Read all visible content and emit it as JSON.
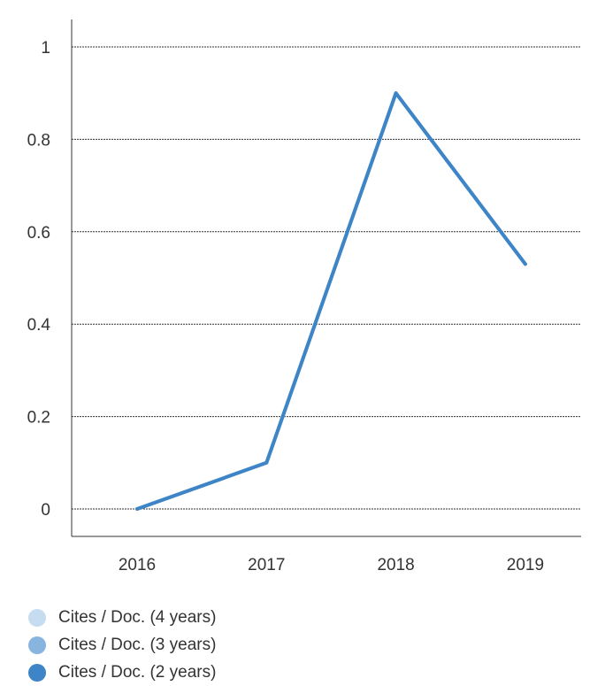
{
  "chart_data": {
    "type": "line",
    "categories": [
      "2016",
      "2017",
      "2018",
      "2019"
    ],
    "series": [
      {
        "name": "Cites / Doc. (4 years)",
        "color": "#c6dcf0",
        "values": [
          0,
          0.1,
          0.9,
          0.53
        ]
      },
      {
        "name": "Cites / Doc. (3 years)",
        "color": "#88b4e0",
        "values": [
          0,
          0.1,
          0.9,
          0.53
        ]
      },
      {
        "name": "Cites / Doc. (2 years)",
        "color": "#3d85c6",
        "values": [
          0,
          0.1,
          0.9,
          0.53
        ]
      }
    ],
    "y_ticks": [
      "0",
      "0.2",
      "0.4",
      "0.6",
      "0.8",
      "1"
    ],
    "ylim": [
      0,
      1
    ],
    "grid": true,
    "legend_position": "bottom-left",
    "title": "",
    "xlabel": "",
    "ylabel": ""
  }
}
